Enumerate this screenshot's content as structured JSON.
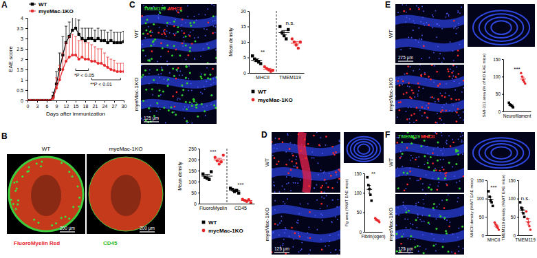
{
  "chart_data": [
    {
      "type": "line",
      "x_label": "Days after immunization",
      "y_label": "EAE score",
      "x": [
        0,
        1,
        2,
        3,
        4,
        5,
        6,
        7,
        8,
        9,
        10,
        11,
        12,
        13,
        14,
        15,
        16,
        17,
        18,
        19,
        20,
        21,
        22,
        23,
        24,
        25,
        26,
        27,
        28,
        29,
        30
      ],
      "xlim": [
        0,
        30
      ],
      "ylim": [
        0,
        4
      ],
      "xticks": [
        0,
        3,
        6,
        9,
        12,
        15,
        18,
        21,
        24,
        27,
        30
      ],
      "yticks": [
        0,
        0.5,
        1,
        1.5,
        2,
        2.5,
        3,
        3.5,
        4
      ],
      "legend": "upper left",
      "series": [
        {
          "name": "WT",
          "color": "#000000",
          "marker": "square",
          "values": [
            0,
            0,
            0,
            0,
            0,
            0,
            0,
            0,
            0.2,
            0.8,
            1.5,
            2.2,
            2.8,
            3.1,
            3.4,
            3.5,
            3.2,
            3.0,
            2.9,
            3.0,
            3.0,
            2.9,
            3.0,
            2.9,
            2.9,
            2.8,
            2.9,
            2.8,
            2.8,
            2.8,
            2.85
          ],
          "error": [
            0,
            0,
            0,
            0,
            0,
            0,
            0,
            0,
            0.2,
            0.6,
            0.8,
            0.9,
            0.8,
            0.7,
            0.7,
            0.6,
            0.7,
            0.5,
            0.6,
            0.5,
            0.5,
            0.5,
            0.5,
            0.5,
            0.5,
            0.5,
            0.5,
            0.5,
            0.5,
            0.5,
            0.5
          ]
        },
        {
          "name": "myeMac-1KO",
          "color": "#e8262a",
          "marker": "circle",
          "values": [
            0,
            0,
            0,
            0,
            0,
            0,
            0,
            0,
            0.1,
            0.6,
            1.0,
            1.5,
            1.9,
            2.1,
            2.2,
            2.2,
            2.0,
            2.1,
            2.0,
            2.0,
            1.9,
            1.9,
            1.8,
            1.8,
            1.7,
            1.6,
            1.5,
            1.45,
            1.4,
            1.4,
            1.4
          ],
          "error": [
            0,
            0,
            0,
            0,
            0,
            0,
            0,
            0,
            0.1,
            0.5,
            0.7,
            0.8,
            0.9,
            1.0,
            1.0,
            0.9,
            0.9,
            0.8,
            0.8,
            0.8,
            0.8,
            0.7,
            0.7,
            0.7,
            0.6,
            0.5,
            0.5,
            0.5,
            0.4,
            0.4,
            0.4
          ]
        }
      ],
      "annotations": [
        {
          "text": "*P < 0.05",
          "x": [
            15,
            19
          ],
          "y": 1.45
        },
        {
          "text": "**P < 0.01",
          "x": [
            20,
            29
          ],
          "y": 1.0
        }
      ]
    },
    {
      "type": "dot",
      "y_label": "Mean density",
      "categories": [
        "FluoroMyelin",
        "CD45"
      ],
      "ylim": [
        0,
        250
      ],
      "yticks": [
        0,
        50,
        100,
        150,
        200,
        250
      ],
      "legend": "bottom",
      "series": [
        {
          "name": "WT",
          "color": "#000000",
          "marker": "square",
          "values": [
            125,
            60
          ],
          "error": [
            8,
            5
          ],
          "points": [
            [
              135,
              120,
              115,
              110,
              145
            ],
            [
              70,
              65,
              55,
              60,
              48
            ]
          ]
        },
        {
          "name": "myeMac-1KO",
          "color": "#e8262a",
          "marker": "circle",
          "values": [
            199,
            14
          ],
          "error": [
            7,
            3
          ],
          "points": [
            [
              210,
              195,
              180,
              190,
              220
            ],
            [
              20,
              15,
              10,
              18,
              5
            ]
          ]
        }
      ],
      "annotations": [
        {
          "text": "***",
          "category": 0
        },
        {
          "text": "***",
          "category": 1
        }
      ]
    },
    {
      "type": "dot",
      "y_label": "Mean density",
      "categories": [
        "MHCII",
        "TMEM119"
      ],
      "ylim": [
        0,
        20
      ],
      "yticks": [
        0,
        5,
        10,
        15,
        20
      ],
      "legend": "bottom",
      "series": [
        {
          "name": "WT",
          "color": "#000000",
          "marker": "square",
          "values": [
            4.1,
            13
          ],
          "error": [
            0.45,
            0.7
          ],
          "points": [
            [
              5.5,
              4.5,
              4,
              3.5,
              3
            ],
            [
              15,
              13,
              12,
              11,
              14
            ]
          ]
        },
        {
          "name": "myeMac-1KO",
          "color": "#e8262a",
          "marker": "circle",
          "values": [
            1.2,
            9.6
          ],
          "error": [
            0.27,
            0.5
          ],
          "points": [
            [
              2,
              1.5,
              1,
              0.5,
              0.8
            ],
            [
              11,
              10,
              9,
              8,
              10
            ]
          ]
        }
      ],
      "annotations": [
        {
          "text": "**",
          "category": 0
        },
        {
          "text": "n.s.",
          "category": 1
        }
      ]
    },
    {
      "type": "dot",
      "y_label": "Fg area (%WT EAE mice)",
      "categories": [
        "Fibrin(ogen)"
      ],
      "ylim": [
        0,
        150
      ],
      "yticks": [
        0,
        50,
        100,
        150
      ],
      "series": [
        {
          "color": "#000000",
          "marker": "square",
          "values": [
            109
          ],
          "error": [
            10
          ],
          "points": [
            [
              140,
              120,
              110,
              95,
              80
            ]
          ]
        },
        {
          "color": "#e8262a",
          "marker": "circle",
          "values": [
            30
          ],
          "error": [
            1.7
          ],
          "points": [
            [
              35,
              32,
              30,
              28,
              25
            ]
          ]
        }
      ],
      "annotations": [
        {
          "text": "**",
          "category": 0
        }
      ]
    },
    {
      "type": "dot",
      "y_label": "SMI-312 area (% of KO EAE mice)",
      "categories": [
        "Neurofilament"
      ],
      "ylim": [
        0,
        150
      ],
      "yticks": [
        0,
        50,
        100,
        150
      ],
      "series": [
        {
          "color": "#000000",
          "marker": "square",
          "values": [
            18
          ],
          "error": [
            2.2
          ],
          "points": [
            [
              25,
              20,
              18,
              15,
              12
            ]
          ]
        },
        {
          "color": "#e8262a",
          "marker": "circle",
          "values": [
            93
          ],
          "error": [
            5.4
          ],
          "points": [
            [
              110,
              100,
              90,
              85,
              80
            ]
          ]
        }
      ],
      "annotations": [
        {
          "text": "***",
          "category": 0
        }
      ]
    },
    {
      "type": "dot",
      "y_label": "MHCII density (%WT EAE mice)",
      "categories": [
        "MHCII"
      ],
      "ylim": [
        0,
        150
      ],
      "yticks": [
        0,
        50,
        100,
        150
      ],
      "series": [
        {
          "color": "#000000",
          "marker": "square",
          "values": [
            98
          ],
          "error": [
            6.8
          ],
          "points": [
            [
              120,
              105,
              95,
              90,
              80
            ]
          ]
        },
        {
          "color": "#e8262a",
          "marker": "circle",
          "values": [
            25
          ],
          "error": [
            3.5
          ],
          "points": [
            [
              35,
              30,
              25,
              20,
              15
            ]
          ]
        }
      ],
      "annotations": [
        {
          "text": "***",
          "category": 0
        }
      ]
    },
    {
      "type": "dot",
      "y_label": "TMEM119 density (%WT EAE mice)",
      "categories": [
        "TMEM119"
      ],
      "ylim": [
        0,
        150
      ],
      "yticks": [
        0,
        50,
        100,
        150
      ],
      "series": [
        {
          "color": "#000000",
          "marker": "square",
          "values": [
            69
          ],
          "error": [
            6.8
          ],
          "points": [
            [
              90,
              75,
              70,
              60,
              50
            ]
          ]
        },
        {
          "color": "#e8262a",
          "marker": "circle",
          "values": [
            37
          ],
          "error": [
            8.6
          ],
          "points": [
            [
              65,
              45,
              35,
              25,
              15
            ]
          ]
        }
      ],
      "annotations": [
        {
          "text": "n.s.",
          "category": 0
        }
      ]
    }
  ],
  "figure": {
    "panels": [
      {
        "label": "A"
      },
      {
        "label": "B",
        "groups": [
          "WT",
          "myeMac-1KO"
        ],
        "scale_bar": "200 μm",
        "stains": [
          {
            "text": "FluoroMyelin Red",
            "color": "#e8262a"
          },
          {
            "text": "CD45",
            "color": "#33bb33"
          }
        ]
      },
      {
        "label": "C",
        "groups": [
          "WT",
          "myeMac-1KO"
        ],
        "scale_bar": "125 μm",
        "stains": [
          {
            "text": "TMEM119",
            "color": "#33cc33"
          },
          {
            "text": "MHCII",
            "color": "#ff3030"
          }
        ]
      },
      {
        "label": "D",
        "groups": [
          "WT",
          "myeMac-1KO"
        ],
        "scale_bar": "125 μm"
      },
      {
        "label": "E",
        "groups": [
          "WT",
          "myeMac-1KO"
        ],
        "scale_bar": "275 μm"
      },
      {
        "label": "F",
        "groups": [
          "WT",
          "myeMac-1KO"
        ],
        "scale_bar": "125 μm",
        "stains": [
          {
            "text": "TMEM119",
            "color": "#33cc33"
          },
          {
            "text": "MHCII",
            "color": "#ff3030"
          }
        ]
      }
    ]
  }
}
